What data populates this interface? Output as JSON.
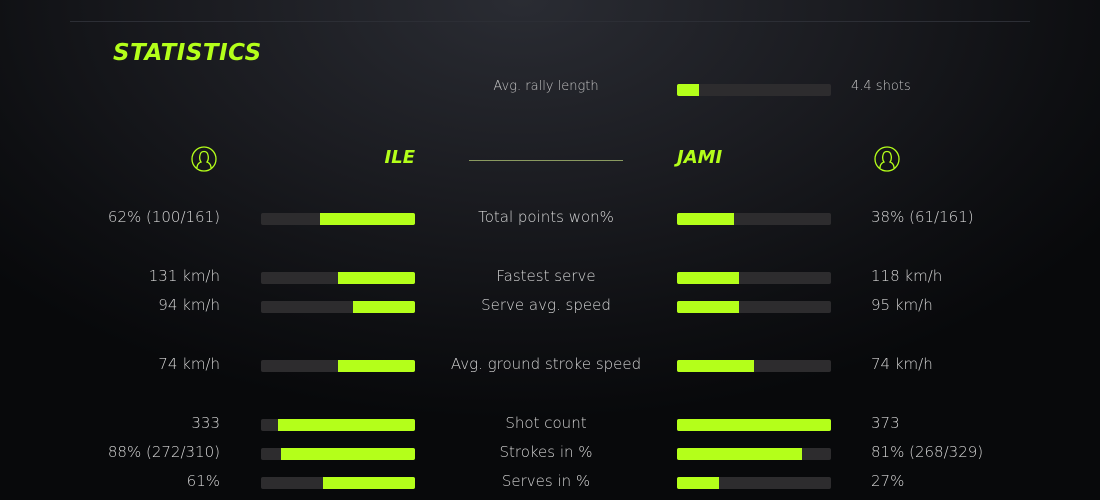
{
  "title": "STATISTICS",
  "accent_color": "#b4ff1a",
  "track_color": "#2d2c2e",
  "rally": {
    "label": "Avg. rally length",
    "value": "4.4 shots",
    "fill": 0.14
  },
  "players": {
    "left": {
      "name": "ILE",
      "icon": "user-circle-icon"
    },
    "right": {
      "name": "JAMI",
      "icon": "user-circle-icon"
    }
  },
  "stats": [
    {
      "label": "Total points won%",
      "left": "62% (100/161)",
      "right": "38% (61/161)",
      "left_fill": 0.62,
      "right_fill": 0.37
    },
    {
      "label": "Fastest serve",
      "left": "131 km/h",
      "right": "118 km/h",
      "left_fill": 0.5,
      "right_fill": 0.4
    },
    {
      "label": "Serve avg. speed",
      "left": "94 km/h",
      "right": "95 km/h",
      "left_fill": 0.4,
      "right_fill": 0.4
    },
    {
      "label": "Avg. ground stroke speed",
      "left": "74 km/h",
      "right": "74 km/h",
      "left_fill": 0.5,
      "right_fill": 0.5
    },
    {
      "label": "Shot count",
      "left": "333",
      "right": "373",
      "left_fill": 0.89,
      "right_fill": 1.0
    },
    {
      "label": "Strokes in %",
      "left": "88% (272/310)",
      "right": "81% (268/329)",
      "left_fill": 0.87,
      "right_fill": 0.81
    },
    {
      "label": "Serves in %",
      "left": "61%",
      "right": "27%",
      "left_fill": 0.6,
      "right_fill": 0.27
    }
  ]
}
